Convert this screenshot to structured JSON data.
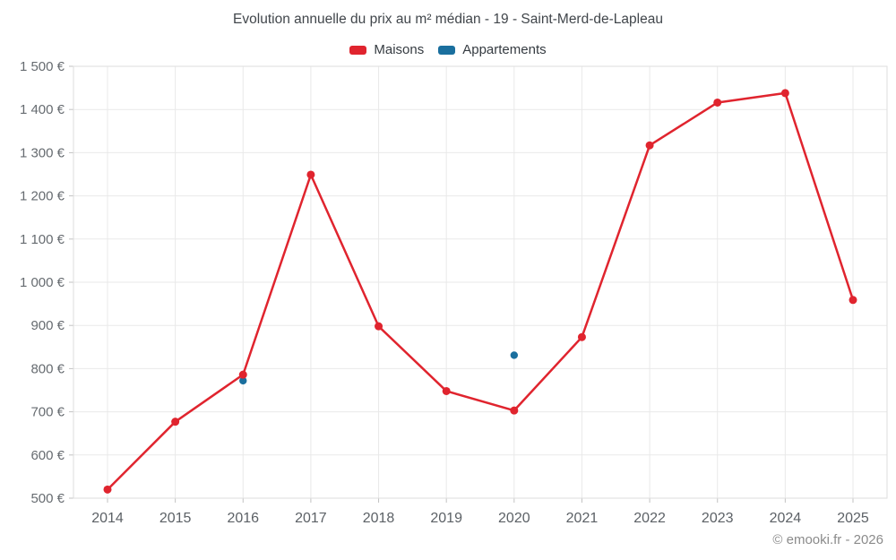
{
  "chart_data": {
    "type": "line",
    "title": "Evolution annuelle du prix au m² médian - 19 - Saint-Merd-de-Lapleau",
    "categories": [
      2014,
      2015,
      2016,
      2017,
      2018,
      2019,
      2020,
      2021,
      2022,
      2023,
      2024,
      2025
    ],
    "series": [
      {
        "name": "Maisons",
        "color": "#e0242e",
        "line": true,
        "marker_radius": 4.5,
        "values": [
          520,
          677,
          786,
          1249,
          898,
          748,
          703,
          873,
          1317,
          1416,
          1438,
          959
        ]
      },
      {
        "name": "Appartements",
        "color": "#1a6f9e",
        "line": false,
        "marker_radius": 4.2,
        "values": [
          null,
          null,
          772,
          null,
          null,
          null,
          831,
          null,
          null,
          null,
          null,
          null
        ]
      }
    ],
    "ylim": [
      500,
      1500
    ],
    "ytick_step": 100,
    "ytick_labels": [
      "500 €",
      "600 €",
      "700 €",
      "800 €",
      "900 €",
      "1 000 €",
      "1 100 €",
      "1 200 €",
      "1 300 €",
      "1 400 €",
      "1 500 €"
    ],
    "xlabel": "",
    "ylabel": "",
    "grid": true,
    "legend_position": "top"
  },
  "footer": "© emooki.fr - 2026",
  "colors": {
    "grid": "#e9e9e9",
    "border": "#dedede",
    "tick": "#c2c2c2",
    "title_text": "#41464b",
    "y_axis_text": "#666b70",
    "x_axis_text": "#5c6166",
    "footer_text": "#8b8b8b"
  }
}
